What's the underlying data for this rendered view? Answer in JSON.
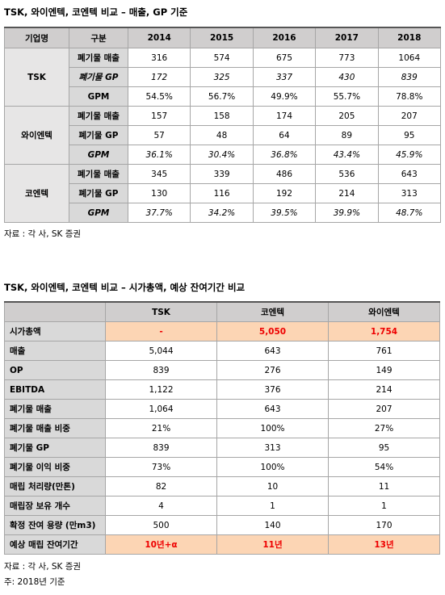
{
  "table1": {
    "title": "TSK, 와이엔텍, 코엔텍 비교 – 매출, GP 기준",
    "header": [
      "기업명",
      "구분",
      "2014",
      "2015",
      "2016",
      "2017",
      "2018"
    ],
    "groups": [
      {
        "name": "TSK",
        "rows": [
          {
            "label": "폐기물 매출",
            "values": [
              "316",
              "574",
              "675",
              "773",
              "1064"
            ]
          },
          {
            "label": "폐기물 GP",
            "values": [
              "172",
              "325",
              "337",
              "430",
              "839"
            ]
          },
          {
            "label": "GPM",
            "values": [
              "54.5%",
              "56.7%",
              "49.9%",
              "55.7%",
              "78.8%"
            ]
          }
        ]
      },
      {
        "name": "와이엔텍",
        "rows": [
          {
            "label": "폐기물 매출",
            "values": [
              "157",
              "158",
              "174",
              "205",
              "207"
            ]
          },
          {
            "label": "폐기물 GP",
            "values": [
              "57",
              "48",
              "64",
              "89",
              "95"
            ]
          },
          {
            "label": "GPM",
            "values": [
              "36.1%",
              "30.4%",
              "36.8%",
              "43.4%",
              "45.9%"
            ]
          }
        ]
      },
      {
        "name": "코엔텍",
        "rows": [
          {
            "label": "폐기물 매출",
            "values": [
              "345",
              "339",
              "486",
              "536",
              "643"
            ]
          },
          {
            "label": "폐기물 GP",
            "values": [
              "130",
              "116",
              "192",
              "214",
              "313"
            ]
          },
          {
            "label": "GPM",
            "values": [
              "37.7%",
              "34.2%",
              "39.5%",
              "39.9%",
              "48.7%"
            ]
          }
        ]
      }
    ],
    "source": "자료 : 각 사, SK 증권"
  },
  "table2": {
    "title": "TSK, 와이엔텍, 코엔텍 비교 – 시가총액, 예상 잔여기간 비교",
    "header": [
      "TSK",
      "코엔텍",
      "와이엔텍"
    ],
    "rows": [
      {
        "label": "시가총액",
        "values": [
          "-",
          "5,050",
          "1,754"
        ]
      },
      {
        "label": "매출",
        "values": [
          "5,044",
          "643",
          "761"
        ]
      },
      {
        "label": "OP",
        "values": [
          "839",
          "276",
          "149"
        ]
      },
      {
        "label": "EBITDA",
        "values": [
          "1,122",
          "376",
          "214"
        ]
      },
      {
        "label": "폐기물 매출",
        "values": [
          "1,064",
          "643",
          "207"
        ]
      },
      {
        "label": "폐기물 매출 비중",
        "values": [
          "21%",
          "100%",
          "27%"
        ]
      },
      {
        "label": "폐기물 GP",
        "values": [
          "839",
          "313",
          "95"
        ]
      },
      {
        "label": "폐기물 이익 비중",
        "values": [
          "73%",
          "100%",
          "54%"
        ]
      },
      {
        "label": "매립 처리량(만톤)",
        "values": [
          "82",
          "10",
          "11"
        ]
      },
      {
        "label": "매립장 보유 개수",
        "values": [
          "4",
          "1",
          "1"
        ]
      },
      {
        "label": "확정 잔여 용량 (만m3)",
        "values": [
          "500",
          "140",
          "170"
        ]
      },
      {
        "label": "예상 매립 잔여기간",
        "values": [
          "10년+α",
          "11년",
          "13년"
        ]
      }
    ],
    "source": "자료 : 각 사, SK 증권",
    "note": "주: 2018년 기준"
  }
}
